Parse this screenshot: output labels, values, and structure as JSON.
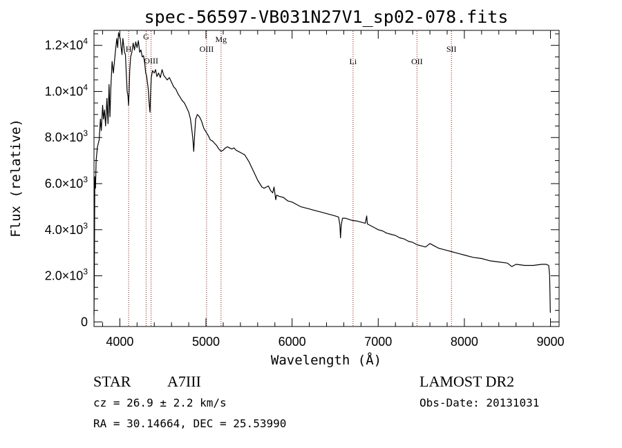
{
  "chart_data": {
    "type": "line",
    "title": "spec-56597-VB031N27V1_sp02-078.fits",
    "xlabel": "Wavelength (Å)",
    "ylabel": "Flux (relative)",
    "xlim": [
      3700,
      9100
    ],
    "ylim": [
      -200,
      12650
    ],
    "grid": false,
    "x_ticks": [
      {
        "value": 4000,
        "label": "4000"
      },
      {
        "value": 5000,
        "label": "5000"
      },
      {
        "value": 6000,
        "label": "6000"
      },
      {
        "value": 7000,
        "label": "7000"
      },
      {
        "value": 8000,
        "label": "8000"
      },
      {
        "value": 9000,
        "label": "9000"
      }
    ],
    "y_ticks": [
      {
        "value": 0,
        "mantissa": "0",
        "exponent": ""
      },
      {
        "value": 2000,
        "mantissa": "2.0×10",
        "exponent": "3"
      },
      {
        "value": 4000,
        "mantissa": "4.0×10",
        "exponent": "3"
      },
      {
        "value": 6000,
        "mantissa": "6.0×10",
        "exponent": "3"
      },
      {
        "value": 8000,
        "mantissa": "8.0×10",
        "exponent": "3"
      },
      {
        "value": 10000,
        "mantissa": "1.0×10",
        "exponent": "4"
      },
      {
        "value": 12000,
        "mantissa": "1.2×10",
        "exponent": "4"
      }
    ],
    "spectral_lines": [
      {
        "name": "H",
        "wavelength": 4102
      },
      {
        "name": "G",
        "wavelength": 4305
      },
      {
        "name": "OIII",
        "wavelength": 4363
      },
      {
        "name": "OIII",
        "wavelength": 5007
      },
      {
        "name": "Mg",
        "wavelength": 5175
      },
      {
        "name": "Li",
        "wavelength": 6708
      },
      {
        "name": "OII",
        "wavelength": 7450
      },
      {
        "name": "SII",
        "wavelength": 7850
      }
    ],
    "series": [
      {
        "color": "#000000",
        "points": [
          [
            3700,
            300
          ],
          [
            3705,
            2600
          ],
          [
            3710,
            6300
          ],
          [
            3718,
            5800
          ],
          [
            3725,
            7000
          ],
          [
            3740,
            7600
          ],
          [
            3760,
            7900
          ],
          [
            3775,
            8800
          ],
          [
            3785,
            8300
          ],
          [
            3800,
            9400
          ],
          [
            3810,
            8800
          ],
          [
            3822,
            9200
          ],
          [
            3835,
            8500
          ],
          [
            3850,
            9700
          ],
          [
            3863,
            8600
          ],
          [
            3875,
            10300
          ],
          [
            3885,
            8900
          ],
          [
            3895,
            10100
          ],
          [
            3910,
            11300
          ],
          [
            3925,
            10800
          ],
          [
            3935,
            11200
          ],
          [
            3950,
            11800
          ],
          [
            3965,
            12300
          ],
          [
            3975,
            11900
          ],
          [
            3985,
            12550
          ],
          [
            3995,
            12400
          ],
          [
            4005,
            12300
          ],
          [
            4015,
            11900
          ],
          [
            4025,
            11600
          ],
          [
            4035,
            12300
          ],
          [
            4045,
            12000
          ],
          [
            4055,
            11700
          ],
          [
            4065,
            11600
          ],
          [
            4075,
            10800
          ],
          [
            4085,
            10000
          ],
          [
            4095,
            9800
          ],
          [
            4101,
            9400
          ],
          [
            4108,
            10000
          ],
          [
            4115,
            10900
          ],
          [
            4125,
            11500
          ],
          [
            4140,
            11700
          ],
          [
            4155,
            12100
          ],
          [
            4170,
            11800
          ],
          [
            4185,
            12150
          ],
          [
            4200,
            11900
          ],
          [
            4215,
            12200
          ],
          [
            4230,
            11700
          ],
          [
            4245,
            11800
          ],
          [
            4260,
            11500
          ],
          [
            4275,
            11550
          ],
          [
            4290,
            11200
          ],
          [
            4300,
            10800
          ],
          [
            4310,
            10700
          ],
          [
            4320,
            10400
          ],
          [
            4330,
            10100
          ],
          [
            4340,
            9500
          ],
          [
            4350,
            9100
          ],
          [
            4358,
            10000
          ],
          [
            4365,
            10600
          ],
          [
            4380,
            10900
          ],
          [
            4400,
            10800
          ],
          [
            4415,
            10950
          ],
          [
            4430,
            10650
          ],
          [
            4450,
            10800
          ],
          [
            4470,
            10600
          ],
          [
            4490,
            10950
          ],
          [
            4510,
            10700
          ],
          [
            4530,
            10600
          ],
          [
            4550,
            10500
          ],
          [
            4575,
            10600
          ],
          [
            4600,
            10400
          ],
          [
            4625,
            10200
          ],
          [
            4650,
            10100
          ],
          [
            4675,
            9900
          ],
          [
            4700,
            9750
          ],
          [
            4725,
            9600
          ],
          [
            4750,
            9500
          ],
          [
            4775,
            9300
          ],
          [
            4800,
            9100
          ],
          [
            4820,
            8800
          ],
          [
            4840,
            8200
          ],
          [
            4850,
            7850
          ],
          [
            4858,
            7400
          ],
          [
            4868,
            8100
          ],
          [
            4880,
            8800
          ],
          [
            4900,
            9000
          ],
          [
            4925,
            8900
          ],
          [
            4950,
            8700
          ],
          [
            4975,
            8400
          ],
          [
            5000,
            8250
          ],
          [
            5025,
            8100
          ],
          [
            5050,
            7900
          ],
          [
            5075,
            7850
          ],
          [
            5100,
            7750
          ],
          [
            5125,
            7650
          ],
          [
            5150,
            7500
          ],
          [
            5175,
            7400
          ],
          [
            5200,
            7450
          ],
          [
            5225,
            7550
          ],
          [
            5250,
            7600
          ],
          [
            5275,
            7550
          ],
          [
            5300,
            7500
          ],
          [
            5325,
            7550
          ],
          [
            5350,
            7450
          ],
          [
            5375,
            7400
          ],
          [
            5400,
            7350
          ],
          [
            5425,
            7300
          ],
          [
            5450,
            7250
          ],
          [
            5475,
            7100
          ],
          [
            5500,
            6950
          ],
          [
            5525,
            6750
          ],
          [
            5550,
            6550
          ],
          [
            5575,
            6350
          ],
          [
            5600,
            6150
          ],
          [
            5625,
            6000
          ],
          [
            5650,
            5850
          ],
          [
            5675,
            5800
          ],
          [
            5700,
            5850
          ],
          [
            5725,
            5900
          ],
          [
            5750,
            5700
          ],
          [
            5775,
            5600
          ],
          [
            5790,
            5850
          ],
          [
            5800,
            5600
          ],
          [
            5810,
            5300
          ],
          [
            5820,
            5500
          ],
          [
            5850,
            5450
          ],
          [
            5900,
            5400
          ],
          [
            5950,
            5250
          ],
          [
            6000,
            5200
          ],
          [
            6050,
            5100
          ],
          [
            6100,
            5000
          ],
          [
            6150,
            4950
          ],
          [
            6200,
            4900
          ],
          [
            6250,
            4850
          ],
          [
            6300,
            4800
          ],
          [
            6350,
            4750
          ],
          [
            6400,
            4700
          ],
          [
            6450,
            4650
          ],
          [
            6500,
            4600
          ],
          [
            6540,
            4550
          ],
          [
            6555,
            4200
          ],
          [
            6562,
            3650
          ],
          [
            6570,
            4200
          ],
          [
            6585,
            4500
          ],
          [
            6620,
            4500
          ],
          [
            6660,
            4450
          ],
          [
            6700,
            4400
          ],
          [
            6750,
            4380
          ],
          [
            6800,
            4330
          ],
          [
            6850,
            4280
          ],
          [
            6866,
            4600
          ],
          [
            6874,
            4250
          ],
          [
            6900,
            4200
          ],
          [
            6950,
            4100
          ],
          [
            7000,
            4000
          ],
          [
            7050,
            3950
          ],
          [
            7100,
            3850
          ],
          [
            7150,
            3800
          ],
          [
            7200,
            3750
          ],
          [
            7250,
            3650
          ],
          [
            7300,
            3600
          ],
          [
            7350,
            3500
          ],
          [
            7400,
            3450
          ],
          [
            7450,
            3350
          ],
          [
            7500,
            3300
          ],
          [
            7550,
            3250
          ],
          [
            7600,
            3400
          ],
          [
            7650,
            3300
          ],
          [
            7700,
            3200
          ],
          [
            7750,
            3150
          ],
          [
            7800,
            3100
          ],
          [
            7850,
            3050
          ],
          [
            7900,
            3000
          ],
          [
            7950,
            2950
          ],
          [
            8000,
            2900
          ],
          [
            8100,
            2800
          ],
          [
            8200,
            2750
          ],
          [
            8300,
            2650
          ],
          [
            8400,
            2600
          ],
          [
            8500,
            2550
          ],
          [
            8550,
            2400
          ],
          [
            8600,
            2500
          ],
          [
            8700,
            2450
          ],
          [
            8800,
            2450
          ],
          [
            8900,
            2500
          ],
          [
            8950,
            2500
          ],
          [
            8980,
            2450
          ],
          [
            8990,
            2000
          ],
          [
            8998,
            400
          ]
        ]
      }
    ]
  },
  "info": {
    "object_type": "STAR",
    "spectral_class": "A7III",
    "survey": "LAMOST DR2",
    "redshift": "cz = 26.9 ± 2.2 km/s",
    "obs_date": "Obs-Date: 20131031",
    "coordinates": "RA =  30.14664, DEC =  25.53990"
  }
}
